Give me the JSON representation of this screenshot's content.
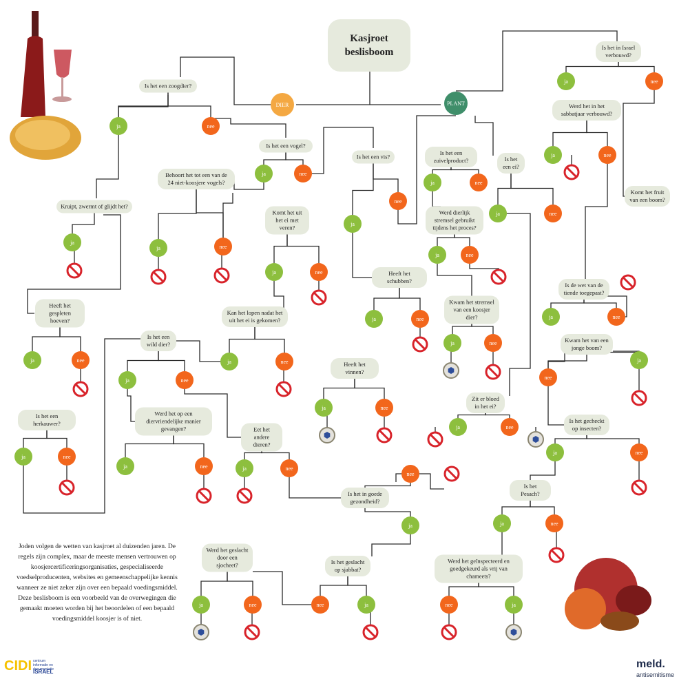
{
  "title": "Kasjroet beslisboom",
  "start": [
    "DIER",
    "PLANT"
  ],
  "questions": [
    "Is het een zoogdier?",
    "Is het een vogel?",
    "Is het een vis?",
    "Is het een zuivelproduct?",
    "Is het een ei?",
    "Is het in Israel verbouwd?",
    "Werd het in het sabbatjaar verbouwd?",
    "Komt het fruit van een boom?",
    "Behoort het tot een van de 24 niet-koosjere vogels?",
    "Kruipt, zwermt of glijdt het?",
    "Komt het uit het ei met veren?",
    "Werd dierlijk stremsel gebruikt tijdens het proces?",
    "Heeft het gespleten hoeven?",
    "Kan het lopen nadat het uit het ei is gekomen?",
    "Heeft het schubben?",
    "Kwam het stremsel van een koosjer dier?",
    "Is de wet van de tiende toegepast?",
    "Is het een wild dier?",
    "Kwam het van een jonge boom?",
    "Heeft het vinnen?",
    "Zit er bloed in het ei?",
    "Is het een herkauwer?",
    "Werd het op een diervriendelijke manier gevangen?",
    "Eet het andere dieren?",
    "Is het gecheckt op insecten?",
    "Is het in goede gezondheid?",
    "Is het Pesach?",
    "Werd het geslacht door een sjocheet?",
    "Is het geslacht op sjabbat?",
    "Werd het geïnspecteerd en goedgekeurd als vrij van chameets?"
  ],
  "answers": [
    "ja",
    "nee",
    "ja",
    "nee",
    "ja",
    "nee",
    "ja",
    "nee",
    "ja",
    "nee",
    "ja",
    "nee",
    "ja",
    "nee",
    "ja",
    "nee",
    "ja",
    "ja",
    "nee",
    "ja",
    "nee",
    "ja",
    "nee",
    "ja",
    "nee",
    "ja",
    "nee",
    "ja",
    "nee",
    "ja",
    "nee",
    "ja",
    "nee",
    "ja",
    "nee",
    "ja",
    "nee",
    "ja",
    "nee",
    "ja",
    "nee",
    "ja",
    "nee",
    "ja",
    "nee",
    "ja",
    "nee",
    "ja",
    "nee",
    "ja",
    "nee",
    "ja",
    "nee",
    "ja",
    "nee",
    "ja",
    "nee"
  ],
  "intro": "Joden volgen de wetten van kasjroet al duizenden jaren. De regels zijn complex, maar de meeste mensen vertrouwen op koosjercertificeringsorganisaties, gespecialiseerde voedselproducenten, websites en gemeenschappelijke kennis wanneer ze niet zeker zijn over een bepaald voedingsmiddel. Deze beslisboom is een voorbeeld van de overwegingen die gemaakt moeten worden bij het beoordelen of een bepaald voedingsmiddel koosjer is of niet.",
  "logos": {
    "cidi": "CIDI",
    "cidi_sub": "centrum informatie en documentatie",
    "cidi_country": "ISRAEL",
    "meld": "meld.",
    "meld_sub": "antisemitisme"
  }
}
